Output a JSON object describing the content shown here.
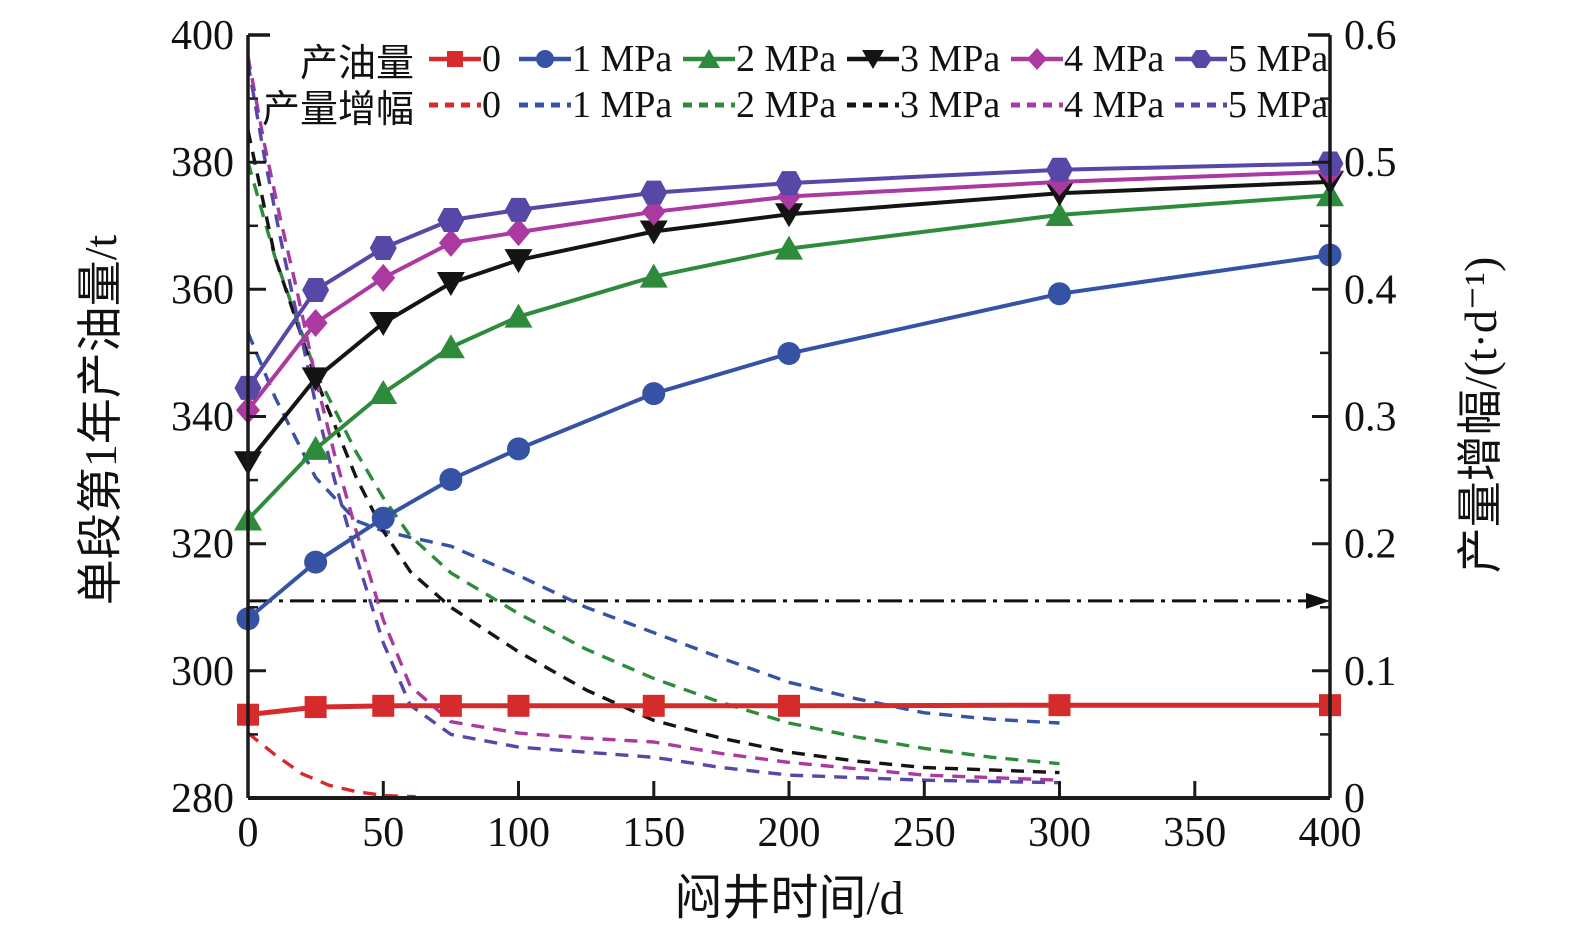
{
  "figure": {
    "left_axis_title": "单段第1年产油量/t",
    "right_axis_title": "产量增幅/(t·d⁻¹)",
    "x_axis_title": "闷井时间/d",
    "legend": {
      "row1_title": "产油量",
      "row2_title": "产量增幅",
      "labels": [
        "0",
        "1 MPa",
        "2 MPa",
        "3 MPa",
        "4 MPa",
        "5 MPa"
      ]
    }
  },
  "chart_data": {
    "type": "line",
    "x_axis": {
      "label": "闷井时间/d",
      "min": 0,
      "max": 400,
      "ticks": [
        0,
        50,
        100,
        150,
        200,
        250,
        300,
        350,
        400
      ]
    },
    "left_y_axis": {
      "label": "单段第1年产油量/t",
      "min": 280,
      "max": 400,
      "ticks": [
        280,
        300,
        320,
        340,
        360,
        380,
        400
      ],
      "minor_ticks": [
        290,
        310,
        330,
        350,
        370,
        390
      ]
    },
    "right_y_axis": {
      "label": "产量增幅/(t·d⁻¹)",
      "min": 0,
      "max": 0.6,
      "tick_labels": [
        "0",
        "0.1",
        "0.2",
        "0.3",
        "0.4",
        "0.5",
        "0.6"
      ],
      "ticks": [
        0,
        0.1,
        0.2,
        0.3,
        0.4,
        0.5,
        0.6
      ],
      "minor_ticks": [
        0.05,
        0.15,
        0.25,
        0.35,
        0.45,
        0.55
      ]
    },
    "colors": {
      "p0": "#d62b2b",
      "p1": "#3552a4",
      "p2": "#2e8b3c",
      "p3": "#141414",
      "p4": "#aa39a0",
      "p5": "#5747a6"
    },
    "solid_series": [
      {
        "label": "0",
        "color": "#d62b2b",
        "marker": "square",
        "line_width": 5,
        "x": [
          0,
          25,
          50,
          75,
          100,
          150,
          200,
          300,
          400
        ],
        "y": [
          293.1,
          294.3,
          294.5,
          294.5,
          294.5,
          294.5,
          294.5,
          294.6,
          294.6
        ]
      },
      {
        "label": "1 MPa",
        "color": "#3552a4",
        "marker": "circle",
        "line_width": 4,
        "x": [
          0,
          25,
          50,
          75,
          100,
          150,
          200,
          300,
          400
        ],
        "y": [
          308.2,
          317.1,
          324.0,
          330.1,
          334.9,
          343.6,
          349.9,
          359.3,
          365.4
        ]
      },
      {
        "label": "2 MPa",
        "color": "#2e8b3c",
        "marker": "triangle-up",
        "line_width": 4,
        "x": [
          0,
          25,
          50,
          75,
          100,
          150,
          200,
          300,
          400
        ],
        "y": [
          323.8,
          334.9,
          343.7,
          350.9,
          355.7,
          362.0,
          366.4,
          371.7,
          374.8
        ]
      },
      {
        "label": "3 MPa",
        "color": "#141414",
        "marker": "triangle-down",
        "line_width": 4,
        "x": [
          0,
          25,
          50,
          75,
          100,
          150,
          200,
          300,
          400
        ],
        "y": [
          332.8,
          346.0,
          354.7,
          361.0,
          364.6,
          369.1,
          371.8,
          375.1,
          376.9
        ]
      },
      {
        "label": "4 MPa",
        "color": "#aa39a0",
        "marker": "diamond",
        "line_width": 4,
        "x": [
          0,
          25,
          50,
          75,
          100,
          150,
          200,
          300,
          400
        ],
        "y": [
          341.0,
          354.7,
          361.8,
          367.3,
          369.0,
          372.2,
          374.6,
          376.9,
          378.5
        ]
      },
      {
        "label": "5 MPa",
        "color": "#5747a6",
        "marker": "hexagon",
        "line_width": 4,
        "x": [
          0,
          25,
          50,
          75,
          100,
          150,
          200,
          300,
          400
        ],
        "y": [
          344.5,
          359.9,
          366.5,
          370.9,
          372.5,
          375.2,
          376.7,
          378.8,
          379.8
        ]
      }
    ],
    "dashed_series": [
      {
        "label": "0",
        "color": "#d62b2b",
        "x": [
          0,
          10,
          20,
          30,
          40,
          50,
          62
        ],
        "y": [
          0.051,
          0.034,
          0.019,
          0.01,
          0.005,
          0.002,
          0.001
        ]
      },
      {
        "label": "1 MPa",
        "color": "#3552a4",
        "x": [
          0,
          10,
          25,
          40,
          50,
          60,
          75,
          100,
          125,
          150,
          175,
          200,
          225,
          250,
          275,
          300
        ],
        "y": [
          0.366,
          0.315,
          0.252,
          0.218,
          0.21,
          0.205,
          0.198,
          0.175,
          0.15,
          0.13,
          0.11,
          0.091,
          0.078,
          0.067,
          0.062,
          0.059
        ]
      },
      {
        "label": "2 MPa",
        "color": "#2e8b3c",
        "x": [
          0,
          10,
          25,
          40,
          50,
          60,
          75,
          100,
          125,
          150,
          175,
          200,
          225,
          250,
          275,
          300
        ],
        "y": [
          0.5,
          0.425,
          0.335,
          0.272,
          0.236,
          0.206,
          0.177,
          0.145,
          0.117,
          0.094,
          0.075,
          0.059,
          0.048,
          0.039,
          0.032,
          0.027
        ]
      },
      {
        "label": "3 MPa",
        "color": "#141414",
        "x": [
          0,
          10,
          25,
          40,
          50,
          60,
          75,
          100,
          125,
          150,
          175,
          200,
          225,
          250,
          275,
          300
        ],
        "y": [
          0.525,
          0.425,
          0.33,
          0.252,
          0.21,
          0.178,
          0.15,
          0.115,
          0.085,
          0.061,
          0.047,
          0.036,
          0.029,
          0.024,
          0.022,
          0.02
        ]
      },
      {
        "label": "4 MPa",
        "color": "#aa39a0",
        "x": [
          0,
          6,
          12,
          18,
          25,
          32,
          40,
          50,
          60,
          75,
          100,
          125,
          150,
          175,
          200,
          250,
          300
        ],
        "y": [
          0.583,
          0.515,
          0.455,
          0.4,
          0.33,
          0.27,
          0.21,
          0.14,
          0.088,
          0.06,
          0.051,
          0.047,
          0.044,
          0.035,
          0.028,
          0.018,
          0.014
        ]
      },
      {
        "label": "5 MPa",
        "color": "#5747a6",
        "x": [
          0,
          6,
          12,
          18,
          25,
          32,
          40,
          50,
          60,
          75,
          100,
          125,
          150,
          175,
          200,
          250,
          300
        ],
        "y": [
          0.578,
          0.505,
          0.44,
          0.38,
          0.31,
          0.25,
          0.19,
          0.122,
          0.073,
          0.05,
          0.04,
          0.036,
          0.032,
          0.024,
          0.018,
          0.014,
          0.012
        ]
      }
    ],
    "reference_line": {
      "axis": "right",
      "value": 0.155,
      "style": "dash-dot",
      "color": "#111111",
      "arrow": "right"
    }
  }
}
